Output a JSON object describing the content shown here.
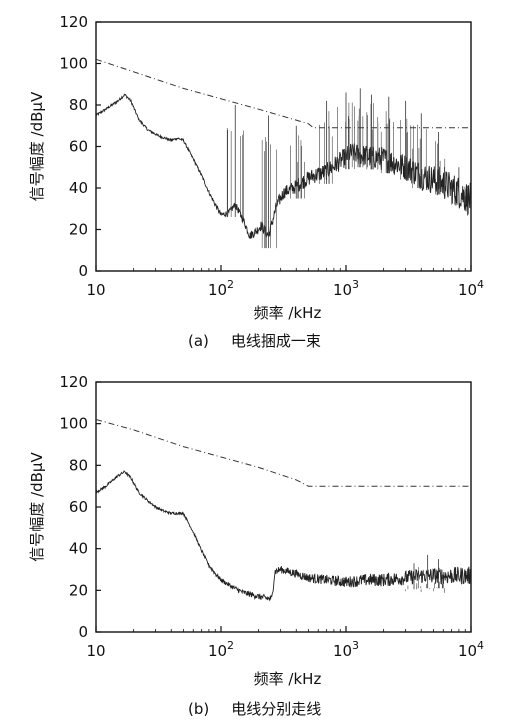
{
  "chart_data": [
    {
      "type": "line",
      "caption_label": "(a)",
      "caption_text": "电线捆成一束",
      "xlabel": "频率 /kHz",
      "ylabel": "信号幅度 /dBμV",
      "xscale": "log",
      "xlim": [
        10,
        10000
      ],
      "ylim": [
        0,
        120
      ],
      "yticks": [
        "0",
        "20",
        "40",
        "60",
        "80",
        "100",
        "120"
      ],
      "xticks": [
        {
          "base": "10",
          "exp": ""
        },
        {
          "base": "10",
          "exp": "2"
        },
        {
          "base": "10",
          "exp": "3"
        },
        {
          "base": "10",
          "exp": "4"
        }
      ],
      "series": [
        {
          "style": "dashed",
          "x": [
            10,
            20,
            50,
            100,
            200,
            500,
            550,
            1000,
            2000,
            5000,
            10000
          ],
          "y": [
            102,
            96,
            88,
            83,
            78,
            71,
            69,
            69,
            69,
            69,
            69
          ]
        },
        {
          "style": "noisy",
          "x": [
            10,
            12,
            15,
            17,
            19,
            22,
            26,
            32,
            40,
            45,
            50,
            60,
            70,
            80,
            90,
            100,
            115,
            130,
            150,
            170,
            190,
            210,
            240,
            280,
            320,
            380,
            450,
            550,
            700,
            900,
            1100,
            1300,
            1600,
            2000,
            2500,
            3000,
            3500,
            4000,
            5000,
            6000,
            7000,
            8000,
            9000,
            10000
          ],
          "y": [
            75,
            78,
            82,
            85,
            82,
            73,
            68,
            65,
            63,
            64,
            63,
            54,
            46,
            38,
            32,
            27,
            28,
            32,
            25,
            17,
            19,
            22,
            17,
            32,
            38,
            40,
            43,
            46,
            48,
            53,
            57,
            56,
            55,
            54,
            52,
            50,
            48,
            46,
            44,
            42,
            40,
            38,
            36,
            34
          ],
          "spikes": [
            {
              "x": 130,
              "y": 80
            },
            {
              "x": 240,
              "y": 75
            },
            {
              "x": 400,
              "y": 70
            },
            {
              "x": 700,
              "y": 82
            },
            {
              "x": 1000,
              "y": 86
            },
            {
              "x": 1300,
              "y": 88
            },
            {
              "x": 1600,
              "y": 85
            },
            {
              "x": 2200,
              "y": 84
            },
            {
              "x": 3000,
              "y": 82
            },
            {
              "x": 4000,
              "y": 76
            },
            {
              "x": 5500,
              "y": 67
            },
            {
              "x": 8000,
              "y": 50
            }
          ]
        }
      ]
    },
    {
      "type": "line",
      "caption_label": "(b)",
      "caption_text": "电线分别走线",
      "xlabel": "频率 /kHz",
      "ylabel": "信号幅度 /dBμV",
      "xscale": "log",
      "xlim": [
        10,
        10000
      ],
      "ylim": [
        0,
        120
      ],
      "yticks": [
        "0",
        "20",
        "40",
        "60",
        "80",
        "100",
        "120"
      ],
      "xticks": [
        {
          "base": "10",
          "exp": ""
        },
        {
          "base": "10",
          "exp": "2"
        },
        {
          "base": "10",
          "exp": "3"
        },
        {
          "base": "10",
          "exp": "4"
        }
      ],
      "series": [
        {
          "style": "dashed",
          "x": [
            10,
            20,
            50,
            100,
            200,
            400,
            500,
            1000,
            2000,
            5000,
            10000
          ],
          "y": [
            102,
            97,
            89,
            84,
            79,
            73,
            70,
            70,
            70,
            70,
            70
          ]
        },
        {
          "style": "noisy",
          "x": [
            10,
            12,
            15,
            17,
            19,
            22,
            26,
            30,
            35,
            40,
            45,
            50,
            60,
            70,
            80,
            90,
            100,
            120,
            150,
            200,
            240,
            255,
            270,
            300,
            400,
            500,
            700,
            1000,
            1500,
            2000,
            3000,
            4000,
            5000,
            7000,
            10000
          ],
          "y": [
            67,
            70,
            75,
            77,
            74,
            67,
            63,
            60,
            58,
            57,
            57,
            57,
            48,
            39,
            32,
            28,
            25,
            22,
            19,
            17,
            16,
            16,
            29,
            30,
            28,
            26,
            25,
            24,
            25,
            25,
            26,
            27,
            27,
            27,
            27
          ],
          "spikes": [
            {
              "x": 3500,
              "y": 33
            },
            {
              "x": 4500,
              "y": 37
            },
            {
              "x": 5500,
              "y": 35
            }
          ]
        }
      ]
    }
  ]
}
